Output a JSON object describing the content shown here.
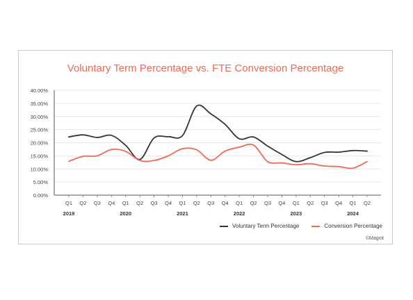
{
  "chart_data": {
    "type": "line",
    "title": "Voluntary Term Percentage vs. FTE Conversion Percentage",
    "xlabel": "",
    "ylabel": "",
    "ylim": [
      0,
      40
    ],
    "y_ticks": [
      "0.00%",
      "5.00%",
      "10.00%",
      "15.00%",
      "20.00%",
      "25.00%",
      "30.00%",
      "35.00%",
      "40.00%"
    ],
    "categories": [
      "Q1",
      "Q2",
      "Q3",
      "Q4",
      "Q1",
      "Q2",
      "Q3",
      "Q4",
      "Q1",
      "Q2",
      "Q3",
      "Q4",
      "Q1",
      "Q2",
      "Q3",
      "Q4",
      "Q1",
      "Q2",
      "Q3",
      "Q4",
      "Q1",
      "Q2"
    ],
    "year_labels": [
      {
        "label": "2019",
        "index": 0
      },
      {
        "label": "2020",
        "index": 4
      },
      {
        "label": "2021",
        "index": 8
      },
      {
        "label": "2022",
        "index": 12
      },
      {
        "label": "2023",
        "index": 16
      },
      {
        "label": "2024",
        "index": 20
      }
    ],
    "grid": true,
    "legend_position": "bottom-right",
    "series": [
      {
        "name": "Voluntary Term Percentage",
        "color": "#333333",
        "values": [
          22.2,
          23.0,
          22.0,
          22.8,
          19.0,
          13.6,
          21.8,
          22.3,
          22.7,
          34.0,
          31.0,
          27.0,
          21.5,
          22.2,
          18.7,
          15.5,
          12.8,
          14.3,
          16.3,
          16.4,
          17.0,
          16.8
        ]
      },
      {
        "name": "Conversion Percentage",
        "color": "#f06a55",
        "values": [
          12.9,
          14.8,
          15.0,
          17.4,
          16.7,
          13.2,
          13.2,
          15.0,
          17.7,
          17.3,
          13.3,
          16.8,
          18.3,
          19.1,
          12.8,
          12.3,
          11.6,
          12.0,
          11.1,
          10.9,
          10.3,
          12.8
        ]
      }
    ],
    "credit": "©Magnit"
  }
}
